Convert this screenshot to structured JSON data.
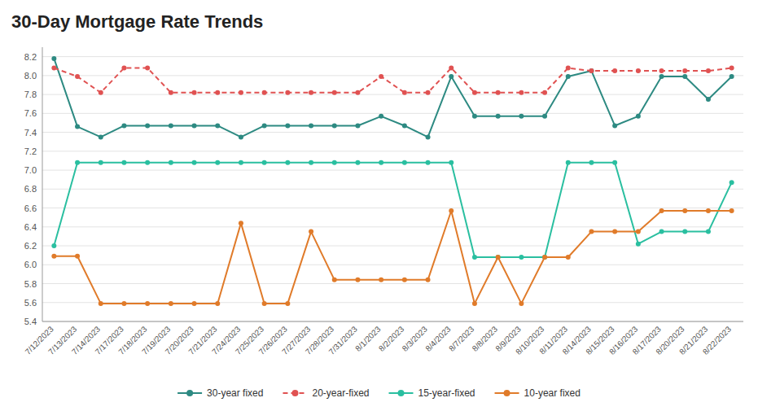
{
  "chart_data": {
    "type": "line",
    "title": "30-Day Mortgage Rate Trends",
    "categories": [
      "7/12/2023",
      "7/13/2023",
      "7/14/2023",
      "7/17/2023",
      "7/18/2023",
      "7/19/2023",
      "7/20/2023",
      "7/21/2023",
      "7/24/2023",
      "7/25/2023",
      "7/26/2023",
      "7/27/2023",
      "7/28/2023",
      "7/31/2023",
      "8/1/2023",
      "8/2/2023",
      "8/3/2023",
      "8/4/2023",
      "8/7/2023",
      "8/8/2023",
      "8/9/2023",
      "8/10/2023",
      "8/11/2023",
      "8/14/2023",
      "8/15/2023",
      "8/16/2023",
      "8/17/2023",
      "8/20/2023",
      "8/21/2023",
      "8/22/2023"
    ],
    "series": [
      {
        "name": "30-year fixed",
        "color": "#2d8a82",
        "line_style": "solid",
        "values": [
          8.18,
          7.46,
          7.35,
          7.47,
          7.47,
          7.47,
          7.47,
          7.47,
          7.35,
          7.47,
          7.47,
          7.47,
          7.47,
          7.47,
          7.57,
          7.47,
          7.35,
          7.99,
          7.57,
          7.57,
          7.57,
          7.57,
          7.99,
          8.05,
          7.47,
          7.57,
          7.99,
          7.99,
          7.75,
          7.99
        ]
      },
      {
        "name": "20-year-fixed",
        "color": "#e05252",
        "line_style": "dashed",
        "values": [
          8.08,
          7.99,
          7.82,
          8.08,
          8.08,
          7.82,
          7.82,
          7.82,
          7.82,
          7.82,
          7.82,
          7.82,
          7.82,
          7.82,
          7.99,
          7.82,
          7.82,
          8.08,
          7.82,
          7.82,
          7.82,
          7.82,
          8.08,
          8.05,
          8.05,
          8.05,
          8.05,
          8.05,
          8.05,
          8.08
        ]
      },
      {
        "name": "15-year-fixed",
        "color": "#2abfa0",
        "line_style": "solid",
        "values": [
          6.2,
          7.08,
          7.08,
          7.08,
          7.08,
          7.08,
          7.08,
          7.08,
          7.08,
          7.08,
          7.08,
          7.08,
          7.08,
          7.08,
          7.08,
          7.08,
          7.08,
          7.08,
          6.08,
          6.08,
          6.08,
          6.08,
          7.08,
          7.08,
          7.08,
          6.22,
          6.35,
          6.35,
          6.35,
          6.87
        ]
      },
      {
        "name": "10-year fixed",
        "color": "#e07b2a",
        "line_style": "solid",
        "values": [
          6.09,
          6.09,
          5.59,
          5.59,
          5.59,
          5.59,
          5.59,
          5.59,
          6.44,
          5.59,
          5.59,
          6.35,
          5.84,
          5.84,
          5.84,
          5.84,
          5.84,
          6.57,
          5.59,
          6.08,
          5.59,
          6.08,
          6.08,
          6.35,
          6.35,
          6.35,
          6.57,
          6.57,
          6.57,
          6.57
        ]
      }
    ],
    "ylim": [
      5.4,
      8.3
    ],
    "yticks": [
      5.4,
      5.6,
      5.8,
      {
        "value": 6,
        "label": "6.0"
      },
      6.2,
      6.4,
      6.6,
      6.8,
      {
        "value": 7,
        "label": "7.0"
      },
      7.2,
      7.4,
      7.6,
      7.8,
      {
        "value": 8,
        "label": "8.0"
      },
      8.2
    ],
    "grid": true,
    "legend": "bottom",
    "marker": "circle"
  }
}
